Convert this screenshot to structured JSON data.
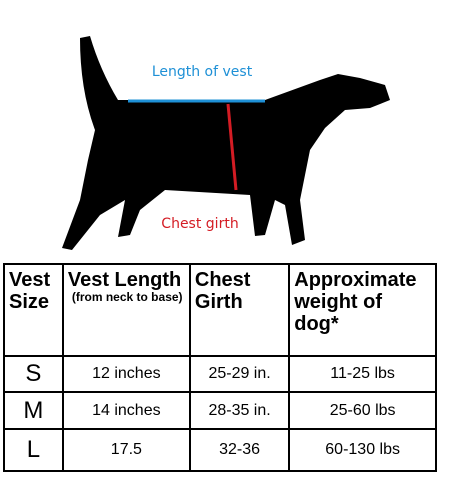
{
  "diagram": {
    "length_label": "Length of vest",
    "girth_label": "Chest girth"
  },
  "table": {
    "header": [
      {
        "title": "Vest Size"
      },
      {
        "title": "Vest Length",
        "note": "(from neck to base)"
      },
      {
        "title": "Chest Girth"
      },
      {
        "title": "Approximate weight of dog*"
      }
    ],
    "rows": [
      [
        "S",
        "12 inches",
        "25-29 in.",
        "11-25 lbs"
      ],
      [
        "M",
        "14 inches",
        "28-35 in.",
        "25-60 lbs"
      ],
      [
        "L",
        "17.5",
        "32-36",
        "60-130 lbs"
      ]
    ]
  }
}
